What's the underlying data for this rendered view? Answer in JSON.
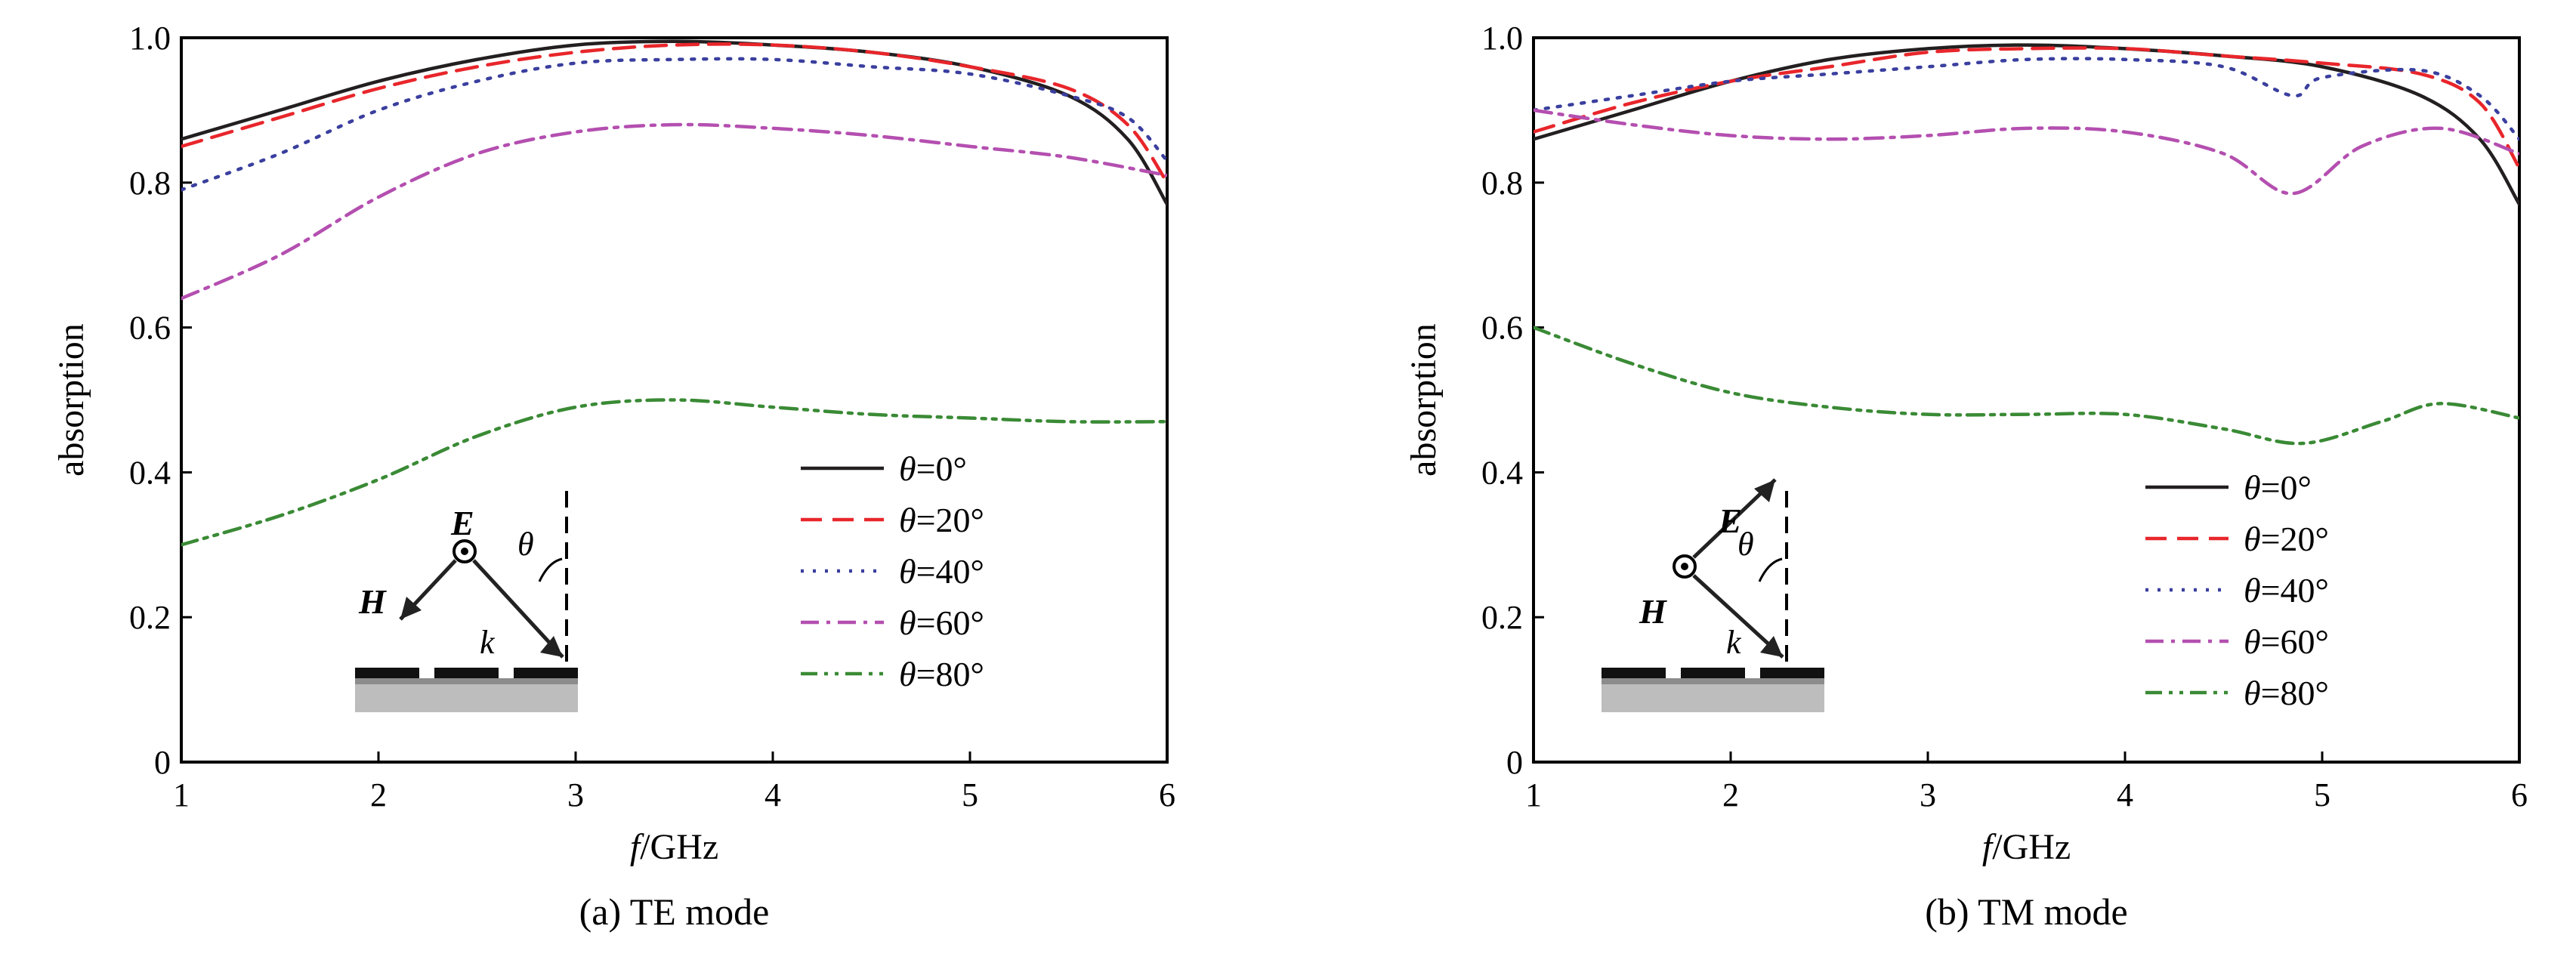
{
  "chart_data": [
    {
      "type": "line",
      "caption": "(a) TE mode",
      "xlabel_italic": "f",
      "xlabel_rest": "/GHz",
      "ylabel": "absorption",
      "xlim": [
        1,
        6
      ],
      "ylim": [
        0,
        1.0
      ],
      "xticks": [
        1,
        2,
        3,
        4,
        5,
        6
      ],
      "yticks": [
        "0",
        "0.2",
        "0.4",
        "0.6",
        "0.8",
        "1.0"
      ],
      "legend_position": "bottom-right",
      "series": [
        {
          "name": "θ=0°",
          "theta": "0",
          "color": "#231f20",
          "dash": "solid",
          "x": [
            1,
            1.5,
            2,
            2.5,
            3,
            3.5,
            4,
            4.5,
            5,
            5.5,
            5.8,
            6
          ],
          "y": [
            0.86,
            0.9,
            0.94,
            0.97,
            0.99,
            0.995,
            0.99,
            0.98,
            0.96,
            0.92,
            0.86,
            0.77
          ]
        },
        {
          "name": "θ=20°",
          "theta": "20",
          "color": "#e8262b",
          "dash": "dashed",
          "x": [
            1,
            1.5,
            2,
            2.5,
            3,
            3.5,
            4,
            4.5,
            5,
            5.5,
            5.8,
            6
          ],
          "y": [
            0.85,
            0.89,
            0.93,
            0.96,
            0.98,
            0.99,
            0.99,
            0.98,
            0.96,
            0.93,
            0.88,
            0.8
          ]
        },
        {
          "name": "θ=40°",
          "theta": "40",
          "color": "#3a3f9e",
          "dash": "dotted",
          "x": [
            1,
            1.5,
            2,
            2.5,
            3,
            3.5,
            4,
            4.5,
            5,
            5.5,
            5.8,
            6
          ],
          "y": [
            0.79,
            0.84,
            0.9,
            0.94,
            0.965,
            0.97,
            0.97,
            0.96,
            0.95,
            0.92,
            0.89,
            0.83
          ]
        },
        {
          "name": "θ=60°",
          "theta": "60",
          "color": "#b44fb0",
          "dash": "dashdot",
          "x": [
            1,
            1.5,
            2,
            2.5,
            3,
            3.5,
            4,
            4.5,
            5,
            5.5,
            6
          ],
          "y": [
            0.64,
            0.7,
            0.78,
            0.84,
            0.87,
            0.88,
            0.875,
            0.865,
            0.85,
            0.835,
            0.81
          ]
        },
        {
          "name": "θ=80°",
          "theta": "80",
          "color": "#3a8a35",
          "dash": "dashdotdot",
          "x": [
            1,
            1.5,
            2,
            2.5,
            3,
            3.5,
            4,
            4.5,
            5,
            5.5,
            6
          ],
          "y": [
            0.3,
            0.34,
            0.39,
            0.45,
            0.49,
            0.5,
            0.49,
            0.48,
            0.475,
            0.47,
            0.47
          ]
        }
      ],
      "inset": {
        "E": "E",
        "H": "H",
        "k": "k",
        "theta": "θ"
      }
    },
    {
      "type": "line",
      "caption": "(b) TM mode",
      "xlabel_italic": "f",
      "xlabel_rest": "/GHz",
      "ylabel": "absorption",
      "xlim": [
        1,
        6
      ],
      "ylim": [
        0,
        1.0
      ],
      "xticks": [
        1,
        2,
        3,
        4,
        5,
        6
      ],
      "yticks": [
        "0",
        "0.2",
        "0.4",
        "0.6",
        "0.8",
        "1.0"
      ],
      "legend_position": "bottom-right",
      "series": [
        {
          "name": "θ=0°",
          "theta": "0",
          "color": "#231f20",
          "dash": "solid",
          "x": [
            1,
            1.5,
            2,
            2.5,
            3,
            3.5,
            4,
            4.5,
            5,
            5.5,
            5.8,
            6
          ],
          "y": [
            0.86,
            0.9,
            0.94,
            0.97,
            0.985,
            0.99,
            0.985,
            0.975,
            0.96,
            0.92,
            0.86,
            0.77
          ]
        },
        {
          "name": "θ=20°",
          "theta": "20",
          "color": "#e8262b",
          "dash": "dashed",
          "x": [
            1,
            1.5,
            2,
            2.5,
            3,
            3.5,
            4,
            4.5,
            5,
            5.5,
            5.8,
            6
          ],
          "y": [
            0.87,
            0.91,
            0.94,
            0.96,
            0.98,
            0.985,
            0.985,
            0.975,
            0.965,
            0.95,
            0.91,
            0.82
          ]
        },
        {
          "name": "θ=40°",
          "theta": "40",
          "color": "#3a3f9e",
          "dash": "dotted",
          "x": [
            1,
            1.5,
            2,
            2.5,
            3,
            3.5,
            4,
            4.5,
            4.85,
            5,
            5.5,
            5.8,
            6
          ],
          "y": [
            0.9,
            0.92,
            0.94,
            0.95,
            0.96,
            0.97,
            0.97,
            0.96,
            0.92,
            0.945,
            0.955,
            0.92,
            0.86
          ]
        },
        {
          "name": "θ=60°",
          "theta": "60",
          "color": "#b44fb0",
          "dash": "dashdot",
          "x": [
            1,
            1.5,
            2,
            2.5,
            3,
            3.5,
            4,
            4.5,
            4.85,
            5.2,
            5.6,
            6
          ],
          "y": [
            0.9,
            0.88,
            0.865,
            0.86,
            0.865,
            0.875,
            0.87,
            0.84,
            0.785,
            0.85,
            0.875,
            0.84
          ]
        },
        {
          "name": "θ=80°",
          "theta": "80",
          "color": "#3a8a35",
          "dash": "dashdotdot",
          "x": [
            1,
            1.5,
            2,
            2.5,
            3,
            3.5,
            4,
            4.5,
            4.9,
            5.3,
            5.6,
            6
          ],
          "y": [
            0.6,
            0.55,
            0.51,
            0.49,
            0.48,
            0.48,
            0.48,
            0.46,
            0.44,
            0.47,
            0.495,
            0.475
          ]
        }
      ],
      "inset": {
        "E": "E",
        "H": "H",
        "k": "k",
        "theta": "θ"
      }
    }
  ]
}
